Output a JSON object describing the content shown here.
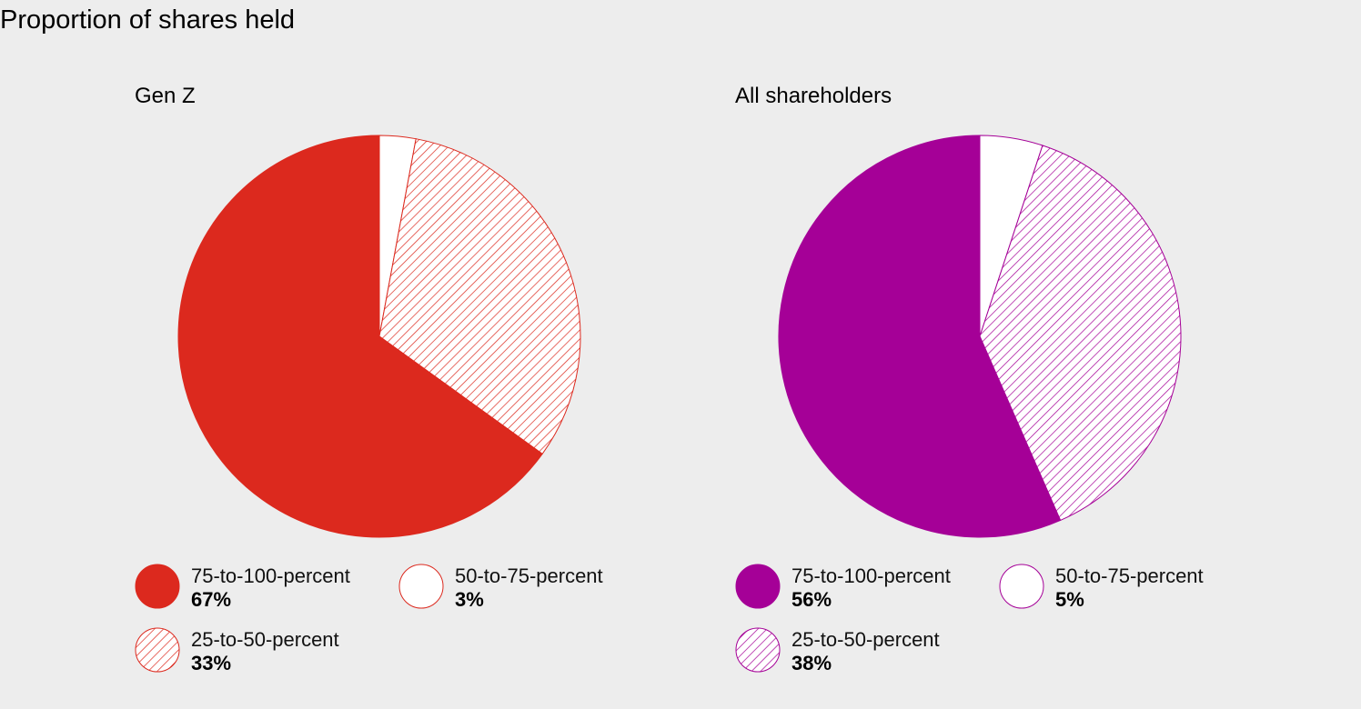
{
  "title": "Proportion of shares held",
  "chart_data": [
    {
      "type": "pie",
      "title": "Gen Z",
      "color": "#dc291e",
      "slices": [
        {
          "label": "50-to-75-percent",
          "value": 3,
          "display": "3%",
          "fill": "white"
        },
        {
          "label": "25-to-50-percent",
          "value": 33,
          "display": "33%",
          "fill": "hatched"
        },
        {
          "label": "75-to-100-percent",
          "value": 67,
          "display": "67%",
          "fill": "solid"
        }
      ],
      "legend_order": [
        2,
        0,
        1
      ]
    },
    {
      "type": "pie",
      "title": "All shareholders",
      "color": "#a50097",
      "slices": [
        {
          "label": "50-to-75-percent",
          "value": 5,
          "display": "5%",
          "fill": "white"
        },
        {
          "label": "25-to-50-percent",
          "value": 38,
          "display": "38%",
          "fill": "hatched"
        },
        {
          "label": "75-to-100-percent",
          "value": 56,
          "display": "56%",
          "fill": "solid"
        }
      ],
      "legend_order": [
        2,
        0,
        1
      ]
    }
  ]
}
